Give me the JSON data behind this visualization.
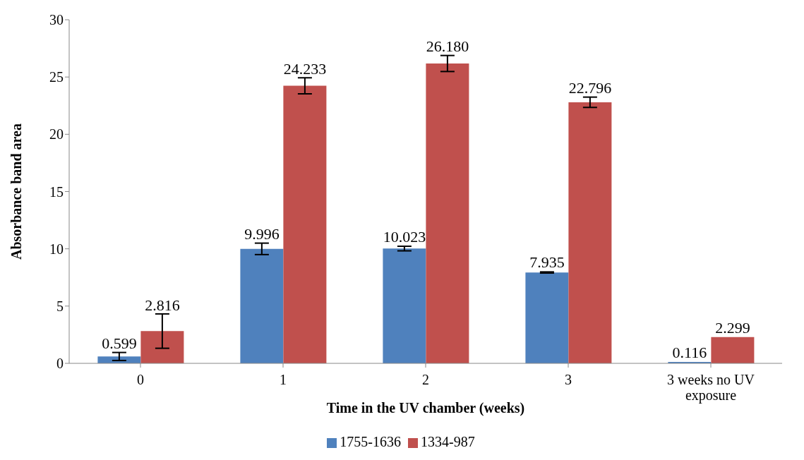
{
  "chart_data": {
    "type": "bar",
    "xlabel": "Time in the UV chamber (weeks)",
    "ylabel": "Absorbance band area",
    "categories": [
      "0",
      "1",
      "2",
      "3",
      "3 weeks no UV exposure"
    ],
    "series": [
      {
        "name": "1755-1636",
        "color": "#4f81bd",
        "values": [
          0.599,
          9.996,
          10.023,
          7.935,
          0.116
        ],
        "errors": [
          0.35,
          0.5,
          0.2,
          0.05,
          null
        ]
      },
      {
        "name": "1334-987",
        "color": "#c0504d",
        "values": [
          2.816,
          24.233,
          26.18,
          22.796,
          2.299
        ],
        "errors": [
          1.5,
          0.7,
          0.7,
          0.45,
          null
        ]
      }
    ],
    "value_labels": [
      [
        "0.599",
        "9.996",
        "10.023",
        "7.935",
        "0.116"
      ],
      [
        "2.816",
        "24.233",
        "26.180",
        "22.796",
        "2.299"
      ]
    ],
    "ylim": [
      0,
      30
    ],
    "yticks": [
      0,
      5,
      10,
      15,
      20,
      25,
      30
    ],
    "legend": "bottom"
  }
}
